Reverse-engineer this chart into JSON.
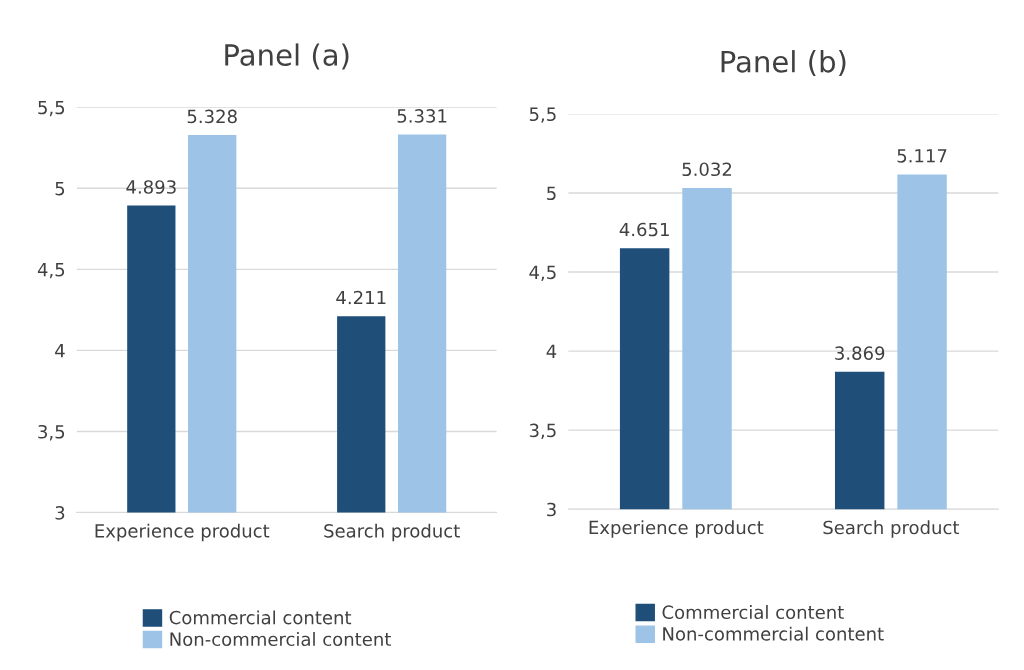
{
  "chart_data": [
    {
      "type": "bar",
      "title": "Panel (a)",
      "categories": [
        "Experience product",
        "Search product"
      ],
      "series": [
        {
          "name": "Commercial content",
          "color": "#1f4e79",
          "values": [
            4.893,
            4.211
          ]
        },
        {
          "name": "Non-commercial content",
          "color": "#9dc3e6",
          "values": [
            5.328,
            5.331
          ]
        }
      ],
      "ylim": [
        3,
        5.5
      ],
      "yticks": [
        3,
        {
          "value": 3.5,
          "label": "3,5"
        },
        4,
        {
          "value": 4.5,
          "label": "4,5"
        },
        5,
        {
          "value": 5.5,
          "label": "5,5"
        }
      ],
      "grid": "y",
      "legend": "bottom",
      "data_labels": true
    },
    {
      "type": "bar",
      "title": "Panel (b)",
      "categories": [
        "Experience product",
        "Search product"
      ],
      "series": [
        {
          "name": "Commercial content",
          "color": "#1f4e79",
          "values": [
            4.651,
            3.869
          ]
        },
        {
          "name": "Non-commercial content",
          "color": "#9dc3e6",
          "values": [
            5.032,
            5.117
          ]
        }
      ],
      "ylim": [
        3,
        5.5
      ],
      "yticks": [
        3,
        {
          "value": 3.5,
          "label": "3,5"
        },
        4,
        {
          "value": 4.5,
          "label": "4,5"
        },
        5,
        {
          "value": 5.5,
          "label": "5,5"
        }
      ],
      "grid": "y",
      "legend": "bottom",
      "data_labels": true
    }
  ]
}
